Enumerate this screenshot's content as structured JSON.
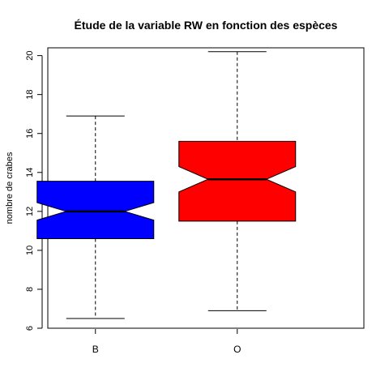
{
  "chart_data": {
    "type": "boxplot",
    "title": "Étude de la variable RW en fonction des espèces",
    "xlabel": "",
    "ylabel": "nombre de crabes",
    "ylim": [
      6,
      20.4
    ],
    "yticks": [
      6,
      8,
      10,
      12,
      14,
      16,
      18,
      20
    ],
    "notched": true,
    "grid": false,
    "categories": [
      "B",
      "O"
    ],
    "boxes": [
      {
        "category": "B",
        "color": "#0000ff",
        "whisker_low": 6.5,
        "q1": 10.6,
        "median": 12.0,
        "q3": 13.55,
        "whisker_high": 16.9,
        "notch_low": 11.55,
        "notch_high": 12.45
      },
      {
        "category": "O",
        "color": "#ff0000",
        "whisker_low": 6.9,
        "q1": 11.5,
        "median": 13.65,
        "q3": 15.6,
        "whisker_high": 20.2,
        "notch_low": 13.0,
        "notch_high": 14.3
      }
    ]
  }
}
